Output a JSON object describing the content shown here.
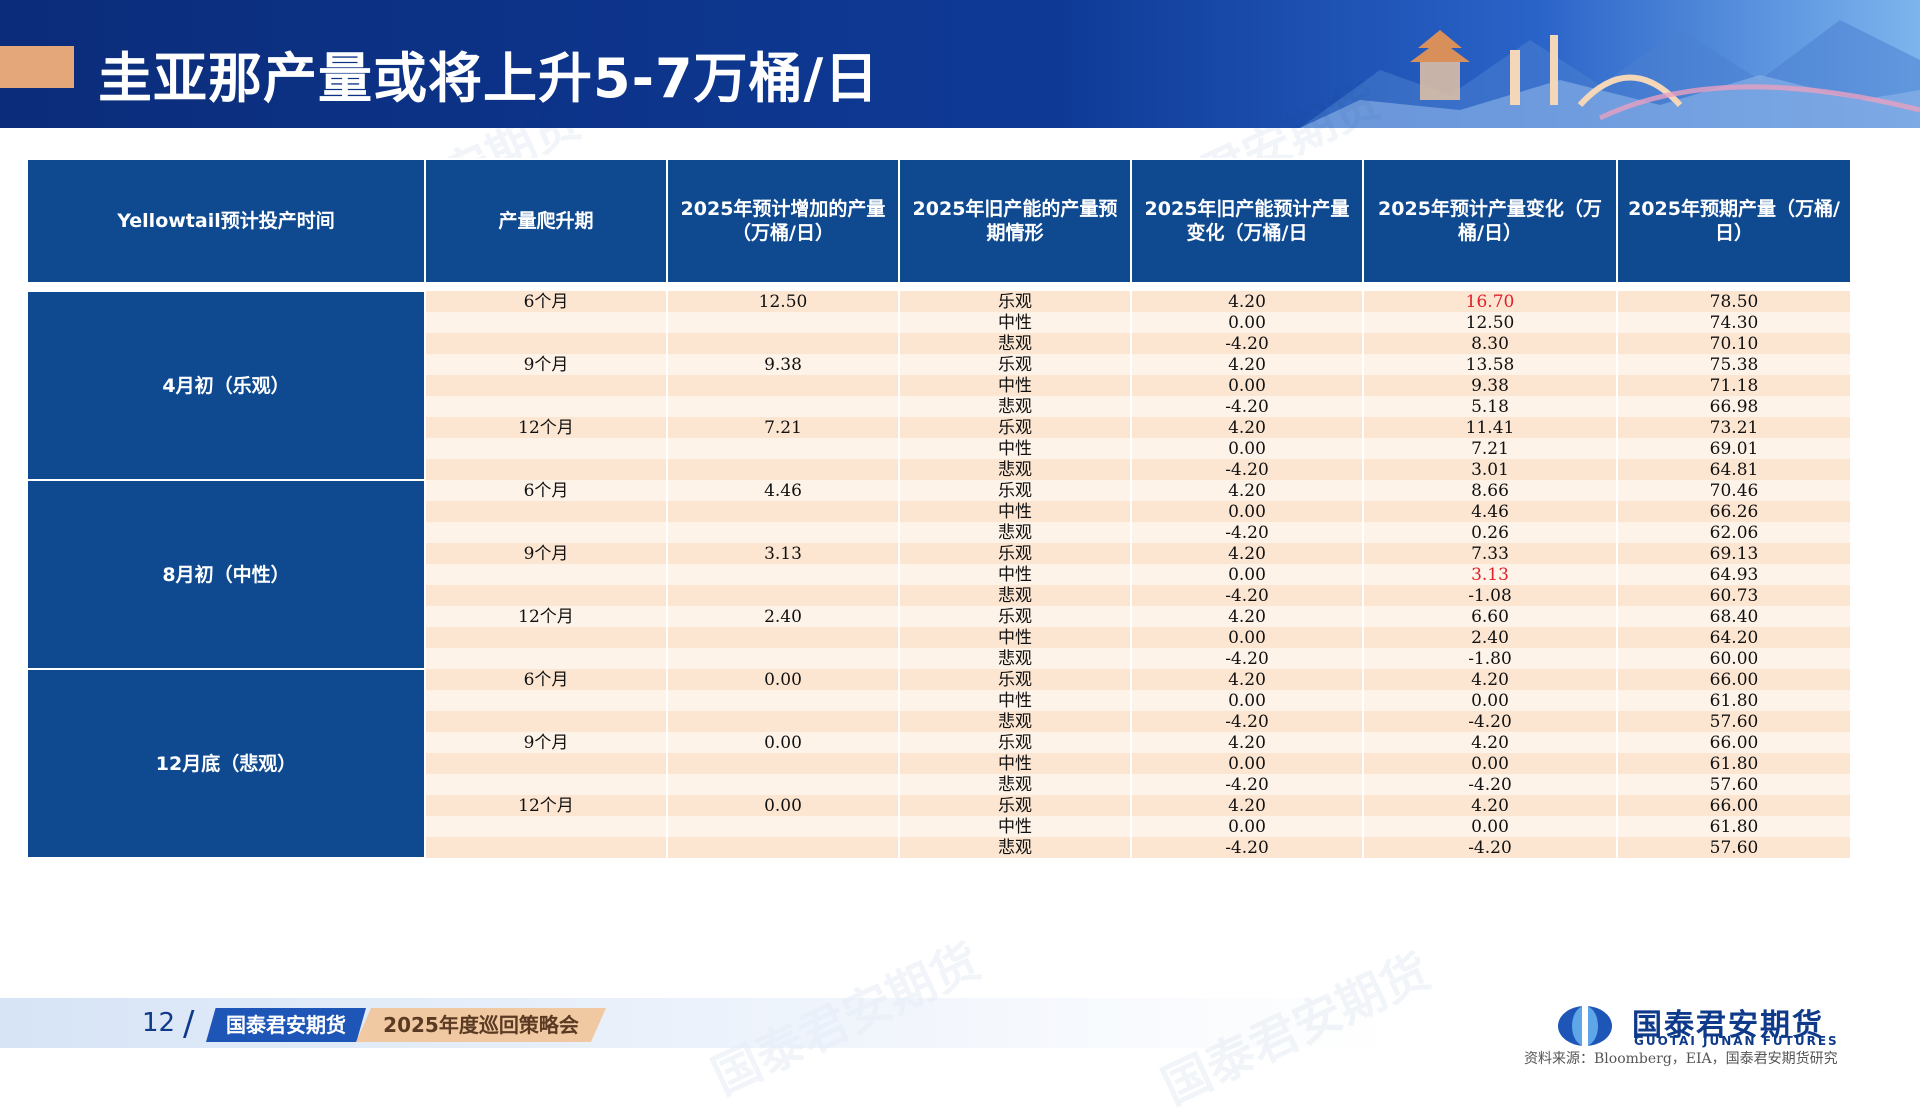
{
  "header": {
    "title": "圭亚那产量或将上升5-7万桶/日"
  },
  "table": {
    "columns": [
      "Yellowtail预计投产时间",
      "产量爬升期",
      "2025年预计增加的产量（万桶/日）",
      "2025年旧产能的产量预期情形",
      "2025年旧产能预计产量变化（万桶/日",
      "2025年预计产量变化（万桶/日）",
      "2025年预期产量（万桶/日）"
    ],
    "groups": [
      {
        "label": "4月初（乐观）",
        "rows": [
          {
            "ramp": "6个月",
            "added": "12.50",
            "scenario": "乐观",
            "old_change": "4.20",
            "total_change": "16.70",
            "expected": "78.50",
            "highlight": true
          },
          {
            "ramp": "",
            "added": "",
            "scenario": "中性",
            "old_change": "0.00",
            "total_change": "12.50",
            "expected": "74.30"
          },
          {
            "ramp": "",
            "added": "",
            "scenario": "悲观",
            "old_change": "-4.20",
            "total_change": "8.30",
            "expected": "70.10"
          },
          {
            "ramp": "9个月",
            "added": "9.38",
            "scenario": "乐观",
            "old_change": "4.20",
            "total_change": "13.58",
            "expected": "75.38"
          },
          {
            "ramp": "",
            "added": "",
            "scenario": "中性",
            "old_change": "0.00",
            "total_change": "9.38",
            "expected": "71.18"
          },
          {
            "ramp": "",
            "added": "",
            "scenario": "悲观",
            "old_change": "-4.20",
            "total_change": "5.18",
            "expected": "66.98"
          },
          {
            "ramp": "12个月",
            "added": "7.21",
            "scenario": "乐观",
            "old_change": "4.20",
            "total_change": "11.41",
            "expected": "73.21"
          },
          {
            "ramp": "",
            "added": "",
            "scenario": "中性",
            "old_change": "0.00",
            "total_change": "7.21",
            "expected": "69.01"
          },
          {
            "ramp": "",
            "added": "",
            "scenario": "悲观",
            "old_change": "-4.20",
            "total_change": "3.01",
            "expected": "64.81"
          }
        ]
      },
      {
        "label": "8月初（中性）",
        "rows": [
          {
            "ramp": "6个月",
            "added": "4.46",
            "scenario": "乐观",
            "old_change": "4.20",
            "total_change": "8.66",
            "expected": "70.46"
          },
          {
            "ramp": "",
            "added": "",
            "scenario": "中性",
            "old_change": "0.00",
            "total_change": "4.46",
            "expected": "66.26"
          },
          {
            "ramp": "",
            "added": "",
            "scenario": "悲观",
            "old_change": "-4.20",
            "total_change": "0.26",
            "expected": "62.06"
          },
          {
            "ramp": "9个月",
            "added": "3.13",
            "scenario": "乐观",
            "old_change": "4.20",
            "total_change": "7.33",
            "expected": "69.13"
          },
          {
            "ramp": "",
            "added": "",
            "scenario": "中性",
            "old_change": "0.00",
            "total_change": "3.13",
            "expected": "64.93",
            "highlight": true
          },
          {
            "ramp": "",
            "added": "",
            "scenario": "悲观",
            "old_change": "-4.20",
            "total_change": "-1.08",
            "expected": "60.73"
          },
          {
            "ramp": "12个月",
            "added": "2.40",
            "scenario": "乐观",
            "old_change": "4.20",
            "total_change": "6.60",
            "expected": "68.40"
          },
          {
            "ramp": "",
            "added": "",
            "scenario": "中性",
            "old_change": "0.00",
            "total_change": "2.40",
            "expected": "64.20"
          },
          {
            "ramp": "",
            "added": "",
            "scenario": "悲观",
            "old_change": "-4.20",
            "total_change": "-1.80",
            "expected": "60.00"
          }
        ]
      },
      {
        "label": "12月底（悲观）",
        "rows": [
          {
            "ramp": "6个月",
            "added": "0.00",
            "scenario": "乐观",
            "old_change": "4.20",
            "total_change": "4.20",
            "expected": "66.00"
          },
          {
            "ramp": "",
            "added": "",
            "scenario": "中性",
            "old_change": "0.00",
            "total_change": "0.00",
            "expected": "61.80"
          },
          {
            "ramp": "",
            "added": "",
            "scenario": "悲观",
            "old_change": "-4.20",
            "total_change": "-4.20",
            "expected": "57.60"
          },
          {
            "ramp": "9个月",
            "added": "0.00",
            "scenario": "乐观",
            "old_change": "4.20",
            "total_change": "4.20",
            "expected": "66.00"
          },
          {
            "ramp": "",
            "added": "",
            "scenario": "中性",
            "old_change": "0.00",
            "total_change": "0.00",
            "expected": "61.80"
          },
          {
            "ramp": "",
            "added": "",
            "scenario": "悲观",
            "old_change": "-4.20",
            "total_change": "-4.20",
            "expected": "57.60"
          },
          {
            "ramp": "12个月",
            "added": "0.00",
            "scenario": "乐观",
            "old_change": "4.20",
            "total_change": "4.20",
            "expected": "66.00"
          },
          {
            "ramp": "",
            "added": "",
            "scenario": "中性",
            "old_change": "0.00",
            "total_change": "0.00",
            "expected": "61.80"
          },
          {
            "ramp": "",
            "added": "",
            "scenario": "悲观",
            "old_change": "-4.20",
            "total_change": "-4.20",
            "expected": "57.60"
          }
        ]
      }
    ]
  },
  "footer": {
    "page_number": "12",
    "company_tag": "国泰君安期货",
    "event_tag": "2025年度巡回策略会",
    "logo_name": "国泰君安期货",
    "logo_subtitle": "GUOTAI JUNAN FUTURES",
    "source": "资料来源：Bloomberg，EIA，国泰君安期货研究"
  },
  "watermark": {
    "text": "国泰君安期货",
    "subtext": "GUOTAI JUNAN FUTURES"
  },
  "colors": {
    "header_blue": "#0f4a91",
    "row_peach": "#fce6d2",
    "row_light": "#fdf3e9",
    "highlight_red": "#e0202a",
    "accent_orange": "#e4a77a"
  }
}
